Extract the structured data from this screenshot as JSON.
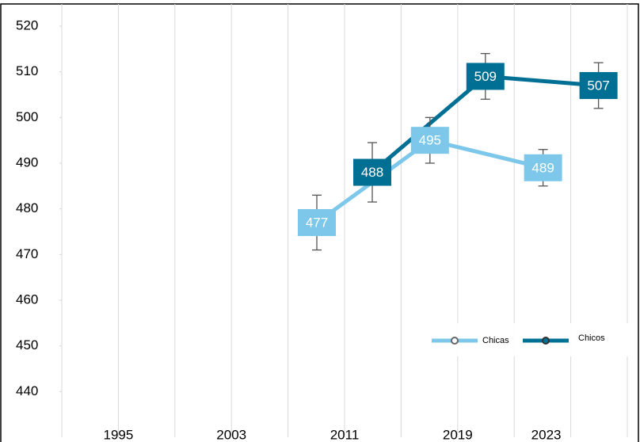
{
  "chart_data": {
    "type": "line",
    "categories": [
      "1995",
      "2003",
      "2011",
      "2019",
      "2023"
    ],
    "series": [
      {
        "name": "Chicas",
        "color": "#7dc8ea",
        "values": [
          null,
          null,
          477,
          495,
          489
        ],
        "errors": [
          null,
          null,
          6,
          5,
          4
        ]
      },
      {
        "name": "Chicos",
        "color": "#006f94",
        "values": [
          null,
          null,
          488,
          509,
          507
        ],
        "errors": [
          null,
          null,
          6.5,
          5,
          5
        ]
      }
    ],
    "ylim": [
      430,
      520
    ],
    "yticks": [
      440,
      450,
      460,
      470,
      480,
      490,
      500,
      510,
      520
    ],
    "grid": "x",
    "legend": "lower right"
  }
}
